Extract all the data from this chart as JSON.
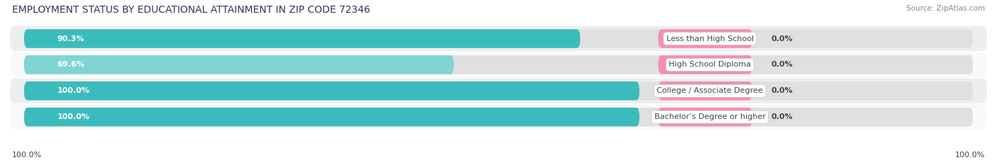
{
  "title": "EMPLOYMENT STATUS BY EDUCATIONAL ATTAINMENT IN ZIP CODE 72346",
  "source": "Source: ZipAtlas.com",
  "categories": [
    "Less than High School",
    "High School Diploma",
    "College / Associate Degree",
    "Bachelor’s Degree or higher"
  ],
  "labor_force": [
    90.3,
    69.6,
    100.0,
    100.0
  ],
  "unemployed": [
    0.0,
    0.0,
    0.0,
    0.0
  ],
  "labor_force_color": "#3bbcbc",
  "labor_force_color_light": "#7fd4d4",
  "unemployed_color": "#f48fb1",
  "row_bg_colors": [
    "#eeeeee",
    "#f9f9f9",
    "#eeeeee",
    "#f9f9f9"
  ],
  "bar_bg_color": "#e0e0e0",
  "title_fontsize": 10,
  "label_fontsize": 8,
  "legend_fontsize": 8.5,
  "x_left_label": "100.0%",
  "x_right_label": "100.0%",
  "max_lf": 100.0,
  "pink_fixed_pct": 9.0,
  "total_width": 100.0
}
